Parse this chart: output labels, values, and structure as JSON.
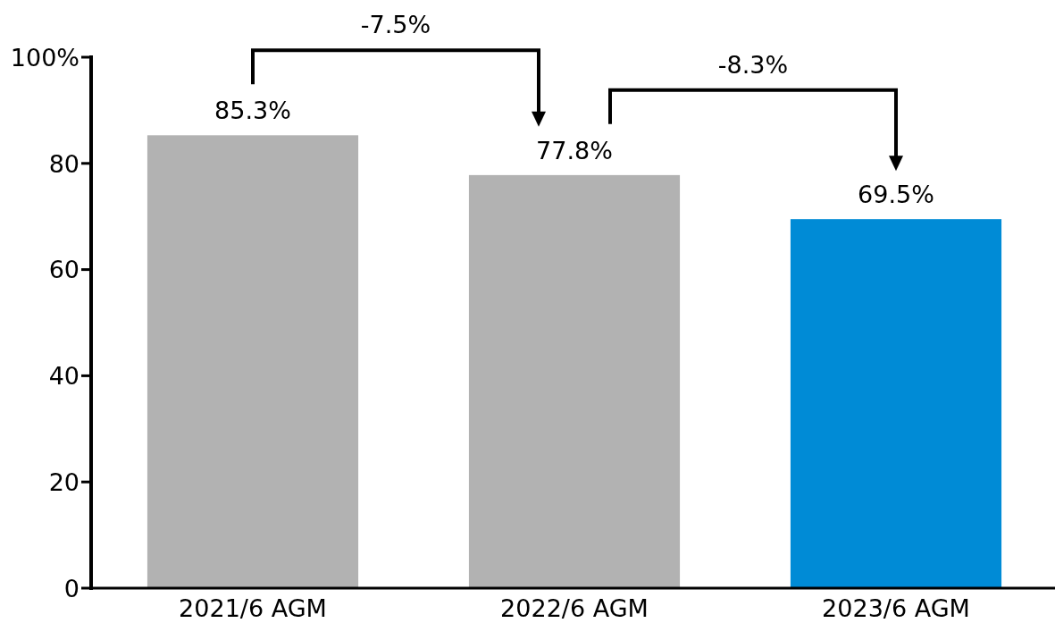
{
  "chart_data": {
    "type": "bar",
    "categories": [
      "2021/6 AGM",
      "2022/6 AGM",
      "2023/6 AGM"
    ],
    "values": [
      85.3,
      77.8,
      69.5
    ],
    "colors": [
      "#b2b2b2",
      "#b2b2b2",
      "#008bd6"
    ],
    "value_labels": [
      "85.3%",
      "77.8%",
      "69.5%"
    ],
    "ylim": [
      0,
      100
    ],
    "yticks": [
      0,
      20,
      40,
      60,
      80,
      {
        "value": 100,
        "label": "100%"
      }
    ],
    "annotations": [
      "-7.5%",
      "-8.3%"
    ]
  }
}
